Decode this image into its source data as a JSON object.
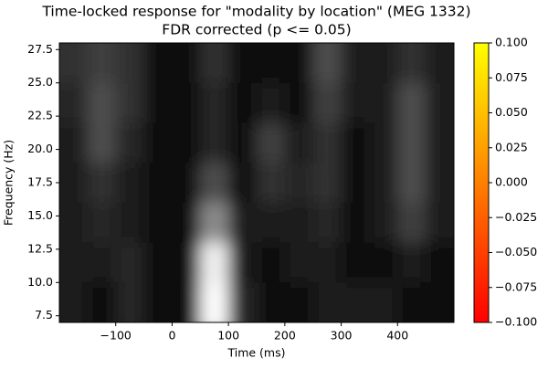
{
  "chart_data": {
    "type": "heatmap",
    "title": "Time-locked response for \"modality by location\" (MEG 1332)",
    "subtitle": "FDR corrected (p <= 0.05)",
    "xlabel": "Time (ms)",
    "ylabel": "Frequency (Hz)",
    "x": [
      -175,
      -125,
      -75,
      -25,
      25,
      75,
      125,
      175,
      225,
      275,
      325,
      375,
      425,
      475
    ],
    "y": [
      8.5,
      11.5,
      14.5,
      17.5,
      20.5,
      23.5,
      26.5
    ],
    "z": [
      [
        0.1,
        0.05,
        0.15,
        0.05,
        0.05,
        1.0,
        0.15,
        0.05,
        0.05,
        0.1,
        0.1,
        0.1,
        0.05,
        0.05
      ],
      [
        0.1,
        0.1,
        0.15,
        0.05,
        0.05,
        0.95,
        0.1,
        0.05,
        0.1,
        0.1,
        0.05,
        0.05,
        0.1,
        0.05
      ],
      [
        0.1,
        0.15,
        0.1,
        0.05,
        0.05,
        0.55,
        0.1,
        0.1,
        0.1,
        0.15,
        0.05,
        0.1,
        0.25,
        0.1
      ],
      [
        0.1,
        0.2,
        0.1,
        0.05,
        0.05,
        0.3,
        0.05,
        0.2,
        0.15,
        0.2,
        0.05,
        0.1,
        0.3,
        0.1
      ],
      [
        0.1,
        0.3,
        0.15,
        0.05,
        0.05,
        0.15,
        0.05,
        0.25,
        0.1,
        0.2,
        0.05,
        0.1,
        0.3,
        0.1
      ],
      [
        0.15,
        0.3,
        0.2,
        0.05,
        0.05,
        0.15,
        0.05,
        0.1,
        0.05,
        0.25,
        0.1,
        0.1,
        0.3,
        0.1
      ],
      [
        0.2,
        0.25,
        0.2,
        0.05,
        0.05,
        0.2,
        0.05,
        0.05,
        0.05,
        0.3,
        0.1,
        0.1,
        0.2,
        0.1
      ]
    ],
    "xlim": [
      -200,
      500
    ],
    "xticks": [
      {
        "value": -100,
        "label": "−100"
      },
      0,
      100,
      200,
      300,
      400
    ],
    "ylim": [
      7,
      28
    ],
    "yticks": [
      7.5,
      {
        "value": 10,
        "label": "10.0"
      },
      12.5,
      {
        "value": 15,
        "label": "15.0"
      },
      17.5,
      {
        "value": 20,
        "label": "20.0"
      },
      22.5,
      {
        "value": 25,
        "label": "25.0"
      },
      27.5
    ],
    "colorbar": {
      "lim": [
        -0.1,
        0.1
      ],
      "colors": [
        "#ff0000",
        "#ffff00"
      ],
      "ticks": [
        {
          "value": -0.1,
          "label": "−0.100"
        },
        {
          "value": -0.075,
          "label": "−0.075"
        },
        {
          "value": -0.05,
          "label": "−0.050"
        },
        {
          "value": -0.025,
          "label": "−0.025"
        },
        {
          "value": 0,
          "label": "0.000"
        },
        {
          "value": 0.025,
          "label": "0.025"
        },
        {
          "value": 0.05,
          "label": "0.050"
        },
        {
          "value": 0.075,
          "label": "0.075"
        },
        {
          "value": 0.1,
          "label": "0.100"
        }
      ]
    }
  }
}
